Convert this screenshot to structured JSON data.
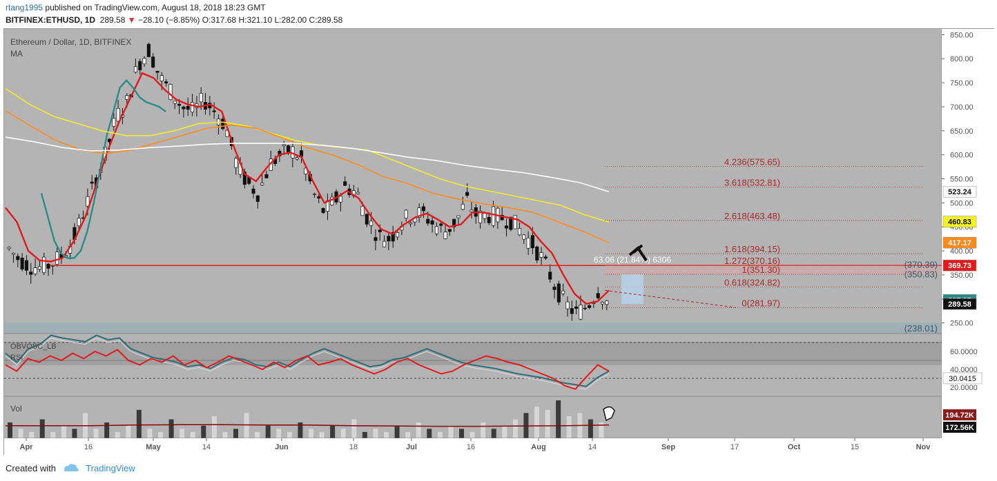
{
  "header": {
    "publisher": "rtang1995",
    "published_text": "published on TradingView.com, August 18, 2018 18:23 GMT",
    "symbol": "BITFINEX:ETHUSD, 1D",
    "last": "289.58",
    "change_arrow": "▼",
    "change": "−28.10 (−8.85%)",
    "o_label": "O:",
    "o": "317.68",
    "h_label": "H:",
    "h": "321.10",
    "l_label": "L:",
    "l": "282.00",
    "c_label": "C:",
    "c": "289.58"
  },
  "legend": {
    "title": "Ethereum / Dollar, 1D, BITFINEX",
    "ma": "MA"
  },
  "osc_legend": {
    "obv": "OBVOSC_LB",
    "rsi": "RSI"
  },
  "vol_legend": "Vol",
  "footer": {
    "created_with": "Created with",
    "brand": "TradingView"
  },
  "colors": {
    "up_candle": "#ffffff",
    "down_candle": "#111111",
    "ma_red": "#e31a1a",
    "ma_teal": "#2a8c86",
    "ma_yellow": "#f2ec2a",
    "ma_orange": "#ff8a1c",
    "ma_white": "#ffffff",
    "support_line": "#e31a1a",
    "fib_text": "#a52a2a",
    "rsi_line": "#e31a1a",
    "obv_line": "#2d6f78",
    "vol_ma": "#8b0000"
  },
  "chart_data": [
    {
      "type": "candlestick",
      "title": "Ethereum / Dollar, 1D, BITFINEX",
      "x_ticks": [
        "Apr",
        "16",
        "May",
        "14",
        "Jun",
        "18",
        "Jul",
        "16",
        "Aug",
        "14",
        "Sep",
        "17",
        "Oct",
        "15",
        "Nov"
      ],
      "y_ticks": [
        "850.00",
        "800.00",
        "750.00",
        "700.00",
        "650.00",
        "600.00",
        "550.00",
        "500.00",
        "450.00",
        "400.00",
        "350.00",
        "300.00",
        "250.00"
      ],
      "ylim": [
        228,
        862
      ],
      "price_path": [
        410,
        385,
        370,
        365,
        372,
        390,
        420,
        480,
        540,
        600,
        680,
        710,
        790,
        820,
        760,
        730,
        700,
        690,
        715,
        690,
        660,
        580,
        540,
        520,
        580,
        600,
        610,
        590,
        520,
        480,
        505,
        535,
        520,
        465,
        430,
        425,
        460,
        475,
        478,
        455,
        440,
        460,
        505,
        470,
        475,
        470,
        465,
        440,
        415,
        380,
        330,
        290,
        270,
        285,
        318,
        290
      ],
      "moving_averages": [
        {
          "name": "MA red",
          "values": [
            490,
            460,
            400,
            380,
            378,
            385,
            420,
            470,
            540,
            610,
            670,
            720,
            770,
            760,
            735,
            715,
            705,
            700,
            705,
            690,
            620,
            560,
            545,
            575,
            600,
            605,
            595,
            545,
            500,
            510,
            525,
            510,
            475,
            445,
            435,
            455,
            470,
            478,
            465,
            450,
            455,
            480,
            480,
            475,
            470,
            465,
            450,
            420,
            395,
            350,
            310,
            290,
            295,
            318
          ]
        },
        {
          "name": "MA teal",
          "values": [
            520,
            470,
            420,
            395,
            385,
            385,
            400,
            440,
            500,
            570,
            640,
            690,
            740,
            755,
            740,
            720,
            710,
            705,
            700,
            690
          ]
        },
        {
          "name": "MA yellow",
          "values": [
            738,
            705,
            680,
            665,
            650,
            640,
            640,
            650,
            665,
            668,
            660,
            645,
            630,
            620,
            615,
            610,
            590,
            570,
            550,
            535,
            525,
            515,
            505,
            495,
            475,
            460
          ]
        },
        {
          "name": "MA orange",
          "values": [
            692,
            660,
            630,
            610,
            603,
            610,
            625,
            640,
            655,
            662,
            655,
            635,
            615,
            600,
            580,
            555,
            540,
            520,
            508,
            498,
            490,
            480,
            460,
            440,
            417
          ]
        },
        {
          "name": "MA white",
          "values": [
            637,
            627,
            615,
            608,
            610,
            615,
            618,
            622,
            624,
            624,
            624,
            620,
            614,
            605,
            595,
            588,
            578,
            570,
            563,
            553,
            542,
            523
          ]
        }
      ],
      "last_price_labels": [
        {
          "value": 523.24,
          "label": "523.24"
        },
        {
          "value": 460.83,
          "label": "460.83"
        },
        {
          "value": 417.17,
          "label": "417.17"
        },
        {
          "value": 369.73,
          "label": "369.73"
        },
        {
          "value": 297.87,
          "label": "297.87"
        },
        {
          "value": 289.58,
          "label": "289.58"
        }
      ],
      "support_line": 369.73,
      "fib_levels": [
        {
          "ratio": "4.236",
          "value": 575.65,
          "label": "4.236(575.65)"
        },
        {
          "ratio": "3.618",
          "value": 532.81,
          "label": "3.618(532.81)"
        },
        {
          "ratio": "2.618",
          "value": 463.48,
          "label": "2.618(463.48)"
        },
        {
          "ratio": "1.618",
          "value": 394.15,
          "label": "1.618(394.15)"
        },
        {
          "ratio": "1.272",
          "value": 370.16,
          "label": "1.272(370.16)"
        },
        {
          "ratio": "1",
          "value": 351.3,
          "label": "1(351.30)"
        },
        {
          "ratio": "0.618",
          "value": 324.82,
          "label": "0.618(324.82)"
        },
        {
          "ratio": "0",
          "value": 281.97,
          "label": "0(281.97)"
        }
      ],
      "zone_labels": [
        {
          "value": 370.39,
          "label": "(370.39)"
        },
        {
          "value": 350.83,
          "label": "(350.83)"
        },
        {
          "value": 238.01,
          "label": "(238.01)"
        }
      ],
      "measure_text": "63.06 (21.84%) 6306"
    },
    {
      "type": "line",
      "title": "RSI / OBVOSC_LB",
      "y_ticks": [
        "60.0000",
        "40.0000",
        "20.0000"
      ],
      "ylim": [
        10,
        80
      ],
      "last_label": "30.0415",
      "rsi": [
        45,
        38,
        52,
        48,
        55,
        50,
        58,
        52,
        60,
        55,
        62,
        50,
        45,
        52,
        48,
        55,
        45,
        50,
        42,
        48,
        55,
        50,
        45,
        40,
        48,
        42,
        50,
        55,
        45,
        48,
        52,
        45,
        40,
        35,
        40,
        48,
        52,
        45,
        40,
        35,
        38,
        45,
        50,
        55,
        52,
        48,
        45,
        40,
        35,
        30,
        22,
        18,
        32,
        45,
        38
      ],
      "obv": [
        55,
        45,
        60,
        65,
        75,
        72,
        70,
        68,
        75,
        70,
        72,
        60,
        55,
        50,
        48,
        45,
        40,
        42,
        38,
        45,
        50,
        48,
        42,
        40,
        45,
        40,
        48,
        55,
        60,
        55,
        50,
        45,
        40,
        42,
        48,
        50,
        55,
        60,
        55,
        50,
        45,
        42,
        40,
        38,
        35,
        32,
        30,
        28,
        25,
        22,
        20,
        18,
        28,
        35
      ]
    },
    {
      "type": "bar",
      "title": "Vol",
      "last_labels": [
        "194.72K",
        "172.56K"
      ],
      "values": [
        5,
        3,
        2,
        6,
        2,
        4,
        3,
        8,
        3,
        5,
        2,
        4,
        9,
        3,
        2,
        6,
        3,
        2,
        4,
        7,
        2,
        3,
        8,
        2,
        4,
        3,
        2,
        5,
        3,
        2,
        4,
        3,
        6,
        2,
        3,
        2,
        4,
        2,
        5,
        3,
        2,
        4,
        3,
        2,
        5,
        3,
        4,
        6,
        8,
        10,
        9,
        12,
        7,
        8,
        6,
        5
      ],
      "vol_ma": [
        4,
        4,
        4,
        4.2,
        4.3,
        4.3,
        4.2,
        4.2,
        4,
        3.9,
        3.8,
        3.8,
        3.9,
        4,
        4.2
      ]
    }
  ]
}
